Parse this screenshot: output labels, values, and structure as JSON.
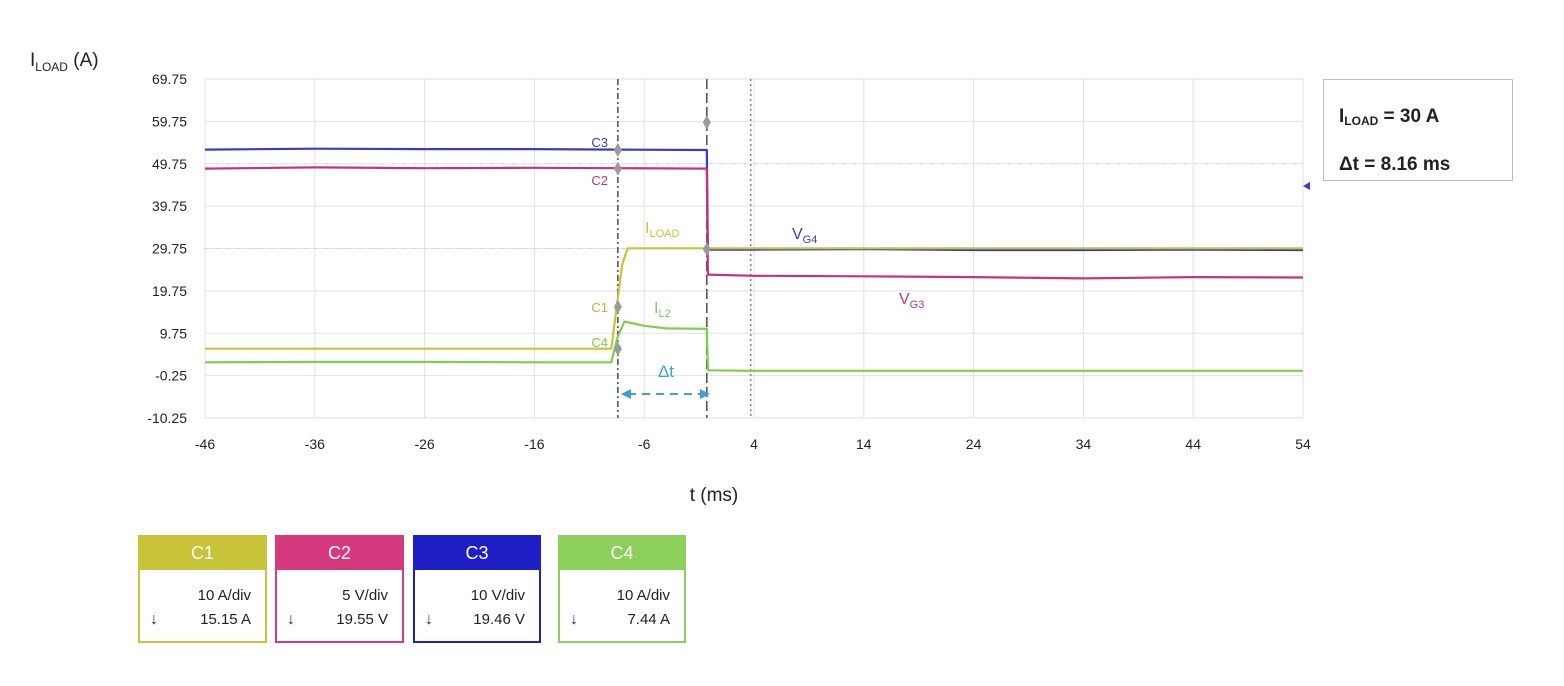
{
  "ylabel_main": "I",
  "ylabel_sub": "LOAD",
  "ylabel_unit": " (A)",
  "xlabel": "t (ms)",
  "info": {
    "line1_main": "I",
    "line1_sub": "LOAD",
    "line1_rest": " = 30 A",
    "line2": "Δt = 8.16 ms"
  },
  "annotations": {
    "c3_marker": "C3",
    "c2_marker": "C2",
    "c1_marker": "C1",
    "c4_marker": "C4",
    "iload_main": "I",
    "iload_sub": "LOAD",
    "il2_main": "I",
    "il2_sub": "L2",
    "vg4_main": "V",
    "vg4_sub": "G4",
    "vg3_main": "V",
    "vg3_sub": "G3",
    "delta_t": "Δt"
  },
  "channels": [
    {
      "name": "C1",
      "scale": "10 A/div",
      "offset": "15.15 A",
      "color": "#c8c43a"
    },
    {
      "name": "C2",
      "scale": "5 V/div",
      "offset": "19.55 V",
      "color": "#d63a7e"
    },
    {
      "name": "C3",
      "scale": "10 V/div",
      "offset": "19.46 V",
      "color": "#1f1fc8"
    },
    {
      "name": "C4",
      "scale": "10 A/div",
      "offset": "7.44 A",
      "color": "#8ccf5a"
    }
  ],
  "chart_data": {
    "type": "line",
    "xlabel": "t (ms)",
    "ylabel": "ILOAD (A)",
    "xlim": [
      -46,
      54
    ],
    "ylim": [
      -10.25,
      69.75
    ],
    "x_ticks": [
      "-46",
      "-36",
      "-26",
      "-16",
      "-6",
      "4",
      "14",
      "24",
      "34",
      "44",
      "54"
    ],
    "y_ticks": [
      "-10.25",
      "-0.25",
      "9.75",
      "19.75",
      "29.75",
      "39.75",
      "49.75",
      "59.75",
      "69.75"
    ],
    "grid": true,
    "cursors_x": [
      -8.4,
      -0.3,
      3.7
    ],
    "series": [
      {
        "name": "VG4",
        "color": "#3a3ac8",
        "x": [
          -46,
          -36,
          -26,
          -16,
          -8.4,
          -0.3,
          -0.2,
          4,
          14,
          24,
          34,
          44,
          54
        ],
        "y": [
          53.1,
          53.3,
          53.2,
          53.2,
          53.1,
          53.0,
          29.5,
          29.5,
          29.6,
          29.4,
          29.4,
          29.5,
          29.4
        ]
      },
      {
        "name": "VG3",
        "color": "#c8327a",
        "x": [
          -46,
          -36,
          -26,
          -16,
          -8.4,
          -0.3,
          -0.2,
          4,
          14,
          24,
          34,
          44,
          54
        ],
        "y": [
          48.6,
          48.9,
          48.7,
          48.8,
          48.7,
          48.6,
          23.6,
          23.3,
          23.2,
          23.0,
          22.7,
          23.0,
          22.9
        ]
      },
      {
        "name": "ILOAD",
        "color": "#c8c43a",
        "x": [
          -46,
          -36,
          -26,
          -16,
          -9.0,
          -8.0,
          -7.5,
          -6,
          4,
          14,
          24,
          34,
          44,
          54
        ],
        "y": [
          6.1,
          6.1,
          6.1,
          6.1,
          6.1,
          26.0,
          29.8,
          29.8,
          29.8,
          29.8,
          29.8,
          29.8,
          29.8,
          29.8
        ]
      },
      {
        "name": "IL2",
        "color": "#7ccf4a",
        "x": [
          -46,
          -36,
          -26,
          -16,
          -9.0,
          -8.4,
          -7.8,
          -6,
          -4,
          -0.3,
          -0.2,
          4,
          14,
          24,
          34,
          44,
          54
        ],
        "y": [
          2.9,
          3.0,
          3.0,
          2.9,
          2.9,
          9.0,
          12.5,
          11.5,
          10.9,
          10.8,
          1.0,
          0.9,
          0.9,
          0.9,
          0.9,
          0.9,
          0.9
        ]
      }
    ]
  }
}
